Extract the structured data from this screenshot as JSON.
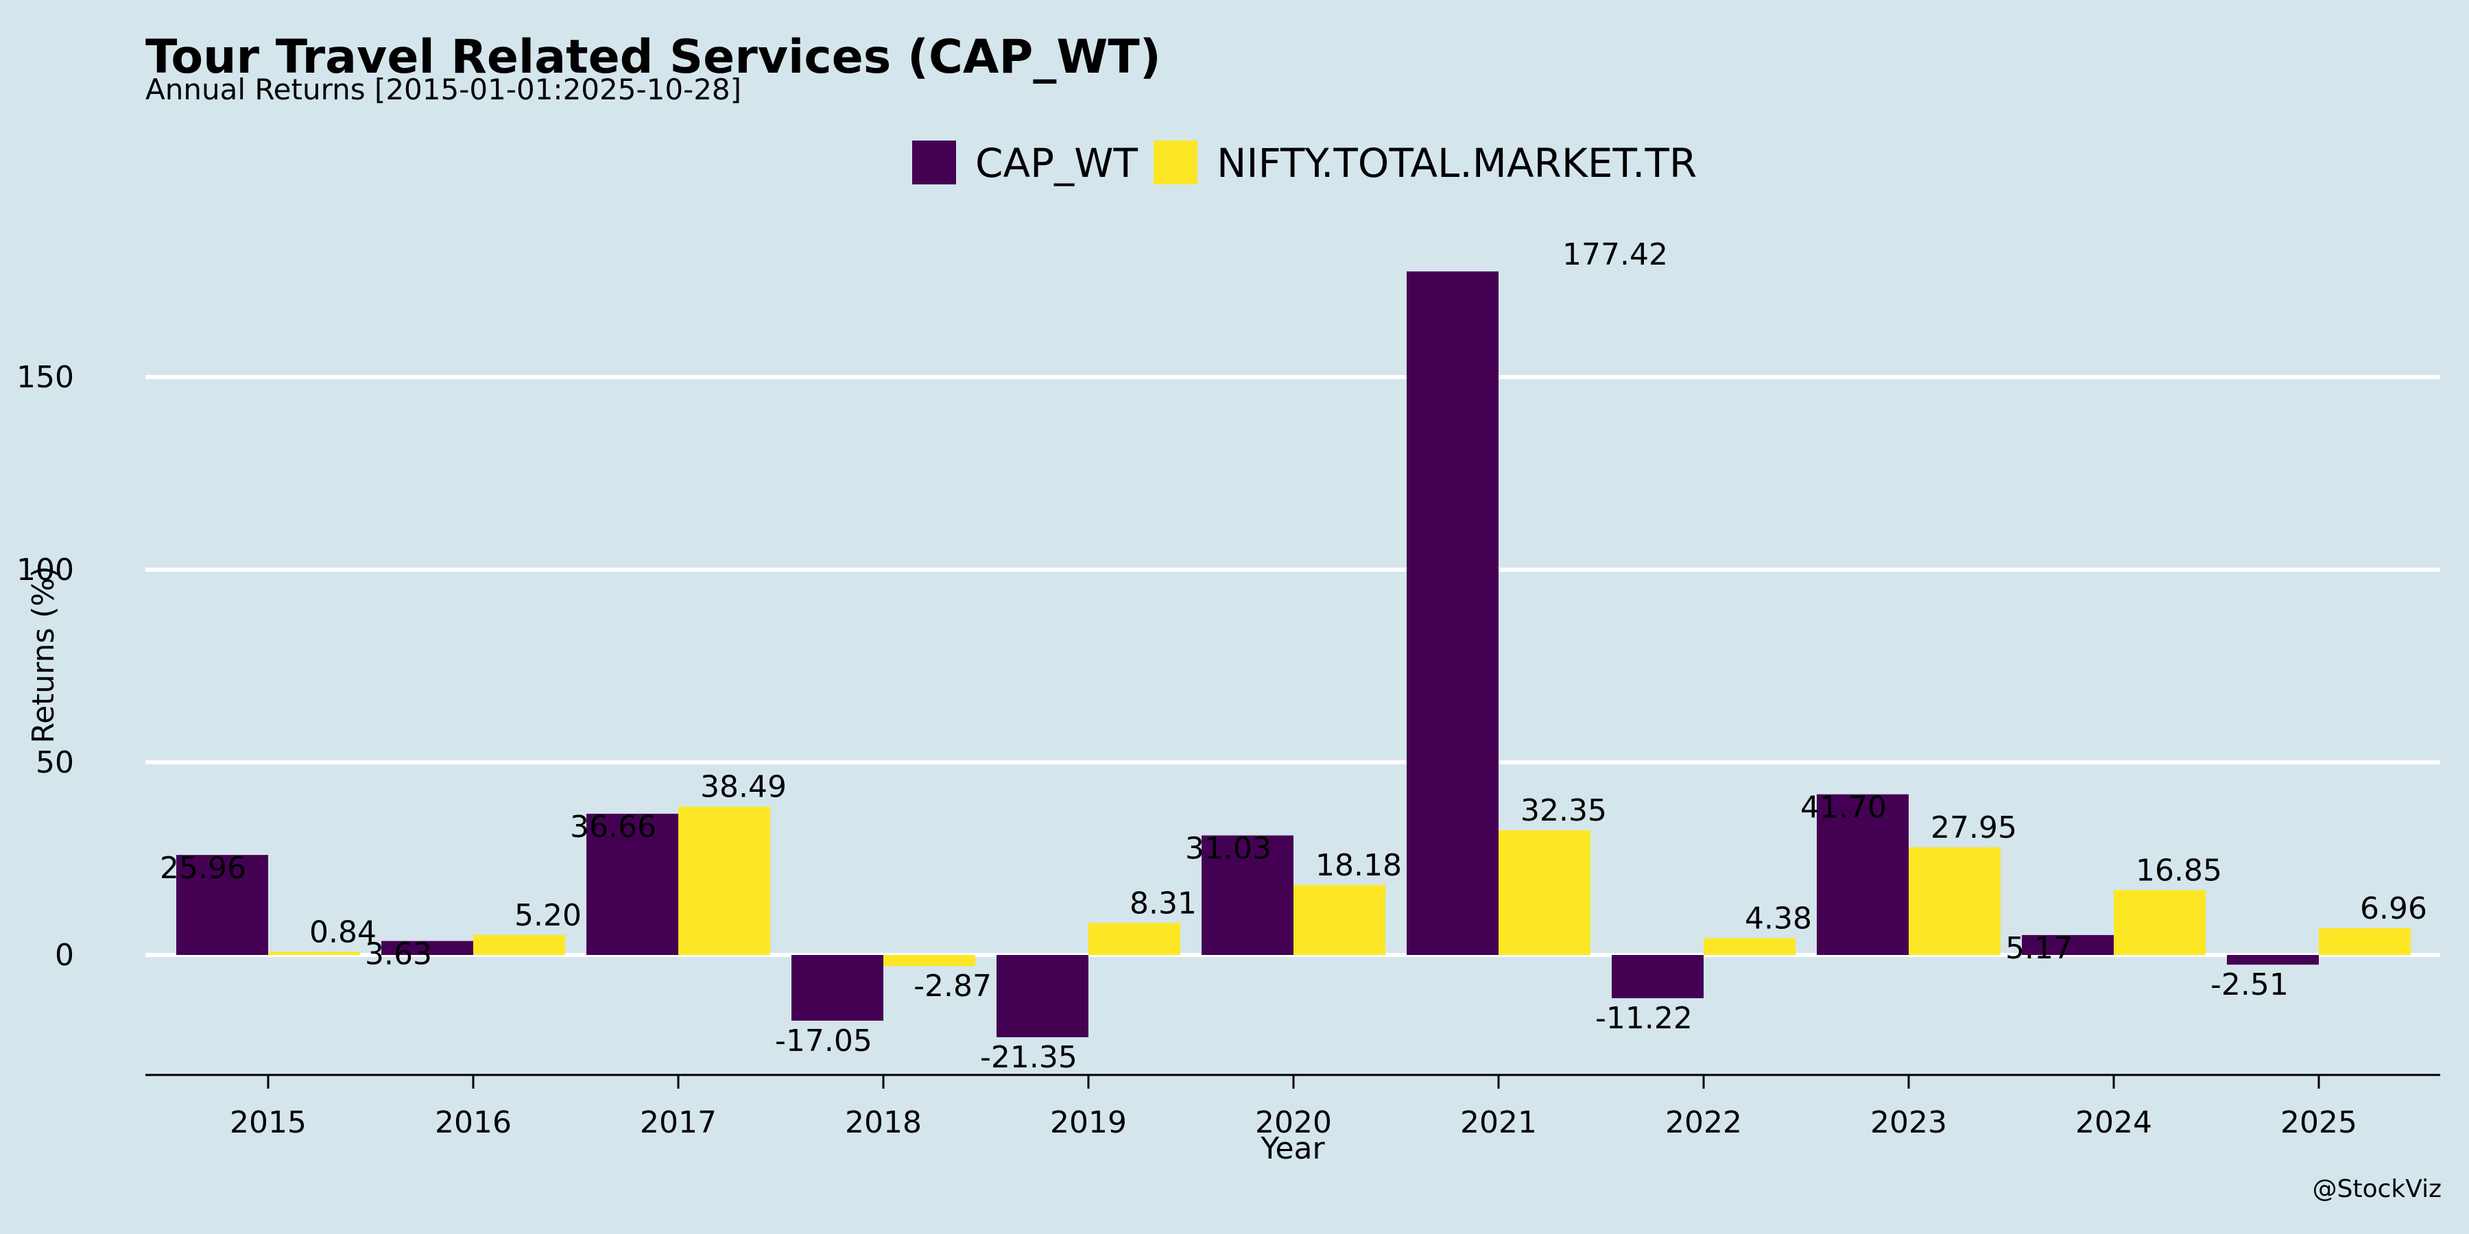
{
  "chart_data": {
    "type": "bar",
    "title": "Tour Travel Related Services (CAP_WT)",
    "subtitle": "Annual Returns [2015-01-01:2025-10-28]",
    "xlabel": "Year",
    "ylabel": "Returns (%)",
    "categories": [
      "2015",
      "2016",
      "2017",
      "2018",
      "2019",
      "2020",
      "2021",
      "2022",
      "2023",
      "2024",
      "2025"
    ],
    "series": [
      {
        "name": "CAP_WT",
        "color": "#440154",
        "values": [
          25.96,
          3.63,
          36.66,
          -17.05,
          -21.35,
          31.03,
          177.42,
          -11.22,
          41.7,
          5.17,
          -2.51
        ]
      },
      {
        "name": "NIFTY.TOTAL.MARKET.TR",
        "color": "#fde725",
        "values": [
          0.84,
          5.2,
          38.49,
          -2.87,
          8.31,
          18.18,
          32.35,
          4.38,
          27.95,
          16.85,
          6.96
        ]
      }
    ],
    "labels": [
      [
        "25.96",
        "3.63",
        "36.66",
        "-17.05",
        "-21.35",
        "31.03",
        "177.42",
        "-11.22",
        "41.70",
        "5.17",
        "-2.51"
      ],
      [
        "0.84",
        "5.20",
        "38.49",
        "-2.87",
        "8.31",
        "18.18",
        "32.35",
        "4.38",
        "27.95",
        "16.85",
        "6.96"
      ]
    ],
    "yticks": [
      0,
      50,
      100,
      150
    ],
    "ylim": [
      -31,
      177.42
    ],
    "grid": true,
    "legend_position": "top-center",
    "credit": "@StockViz",
    "colors": {
      "background": "#d5e5ec",
      "grid": "#ffffff",
      "axis": "#000000"
    }
  }
}
